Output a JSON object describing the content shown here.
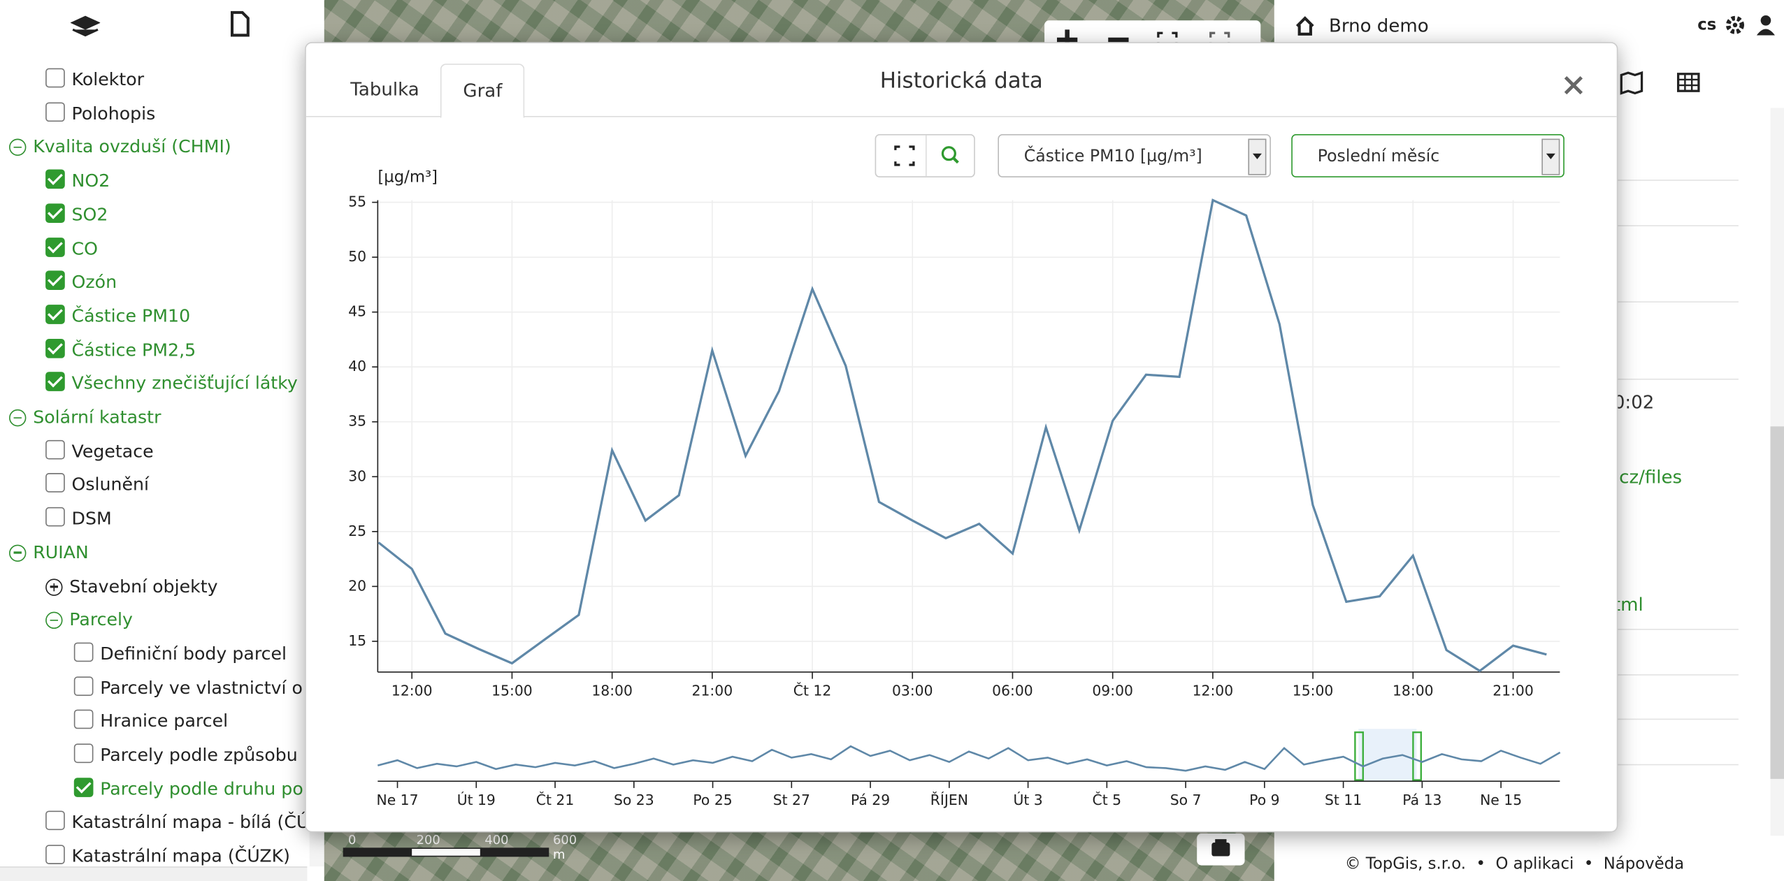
{
  "sidebar": {
    "layers": [
      {
        "label": "Kolektor",
        "checked": false
      },
      {
        "label": "Polohopis",
        "checked": false
      },
      {
        "label": "Kvalita ovzduší (CHMI)",
        "expanded": true,
        "children": [
          {
            "label": "NO2",
            "checked": true
          },
          {
            "label": "SO2",
            "checked": true
          },
          {
            "label": "CO",
            "checked": true
          },
          {
            "label": "Ozón",
            "checked": true
          },
          {
            "label": "Částice PM10",
            "checked": true
          },
          {
            "label": "Částice PM2,5",
            "checked": true
          },
          {
            "label": "Všechny znečišťující látky",
            "checked": true
          }
        ]
      },
      {
        "label": "Solární katastr",
        "expanded": true,
        "children": [
          {
            "label": "Vegetace",
            "checked": false
          },
          {
            "label": "Oslunění",
            "checked": false
          },
          {
            "label": "DSM",
            "checked": false
          }
        ]
      },
      {
        "label": "RUIAN",
        "expanded": true,
        "children": [
          {
            "label": "Stavební objekty",
            "expanded": false,
            "children": []
          },
          {
            "label": "Parcely",
            "expanded": true,
            "children": [
              {
                "label": "Definiční body parcel",
                "checked": false
              },
              {
                "label": "Parcely ve vlastnictví o",
                "checked": false
              },
              {
                "label": "Hranice parcel",
                "checked": false
              },
              {
                "label": "Parcely podle způsobu",
                "checked": false
              },
              {
                "label": "Parcely podle druhu po",
                "checked": true
              }
            ]
          }
        ]
      },
      {
        "label": "Katastrální mapa - bílá (ČÚ",
        "checked": false
      },
      {
        "label": "Katastrální mapa (ČÚZK)",
        "checked": false
      }
    ]
  },
  "map": {
    "scale_labels": [
      0,
      200,
      400,
      600
    ],
    "scale_unit": "m"
  },
  "panel": {
    "title": "Brno demo",
    "language": "cs",
    "fragments": [
      "0:02",
      ".cz/files",
      "tml"
    ]
  },
  "footer": {
    "links": [
      "© TopGis, s.r.o.",
      "O aplikaci",
      "Nápověda"
    ]
  },
  "dialog": {
    "title": "Historická data",
    "tabs": [
      "Tabulka",
      "Graf"
    ],
    "active_tab": 1,
    "selects": [
      "Částice PM10 [µg/m³]",
      "Poslední měsíc"
    ]
  },
  "chart_data": [
    {
      "type": "line",
      "y_label": "[µg/m³]",
      "color": "#5f88a8",
      "grid": true,
      "categories": [
        null,
        "12:00",
        null,
        null,
        "15:00",
        null,
        null,
        "18:00",
        null,
        null,
        "21:00",
        null,
        null,
        "Čt 12",
        null,
        null,
        "03:00",
        null,
        null,
        "06:00",
        null,
        null,
        "09:00",
        null,
        null,
        "12:00",
        null,
        null,
        "15:00",
        null,
        null,
        "18:00",
        null,
        null,
        "21:00",
        null
      ],
      "values": [
        24.0,
        21.6,
        15.7,
        14.3,
        13.0,
        15.2,
        17.4,
        32.4,
        26.0,
        28.3,
        41.5,
        31.9,
        37.8,
        47.1,
        40.1,
        27.7,
        26.0,
        24.4,
        25.7,
        23.0,
        34.5,
        25.1,
        35.1,
        39.3,
        39.1,
        55.2,
        53.8,
        43.9,
        27.4,
        18.6,
        19.1,
        22.8,
        14.2,
        12.3,
        14.6,
        13.8
      ],
      "ylim": [
        12.2,
        55.2
      ],
      "yticks": [
        15,
        20,
        25,
        30,
        35,
        40,
        45,
        50,
        55
      ]
    },
    {
      "type": "line",
      "color": "#5f88a8",
      "categories": [
        null,
        "Ne 17",
        null,
        null,
        null,
        "Út 19",
        null,
        null,
        null,
        "Čt 21",
        null,
        null,
        null,
        "So 23",
        null,
        null,
        null,
        "Po 25",
        null,
        null,
        null,
        "St 27",
        null,
        null,
        null,
        "Pá 29",
        null,
        null,
        null,
        "ŘÍJEN",
        null,
        null,
        null,
        "Út 3",
        null,
        null,
        null,
        "Čt 5",
        null,
        null,
        null,
        "So 7",
        null,
        null,
        null,
        "Po 9",
        null,
        null,
        null,
        "St 11",
        null,
        null,
        null,
        "Pá 13",
        null,
        null,
        null,
        "Ne 15",
        null,
        null,
        null
      ],
      "values": [
        18,
        24,
        15,
        20,
        17,
        22,
        14,
        19,
        16,
        21,
        18,
        23,
        15,
        20,
        26,
        19,
        24,
        21,
        28,
        23,
        36,
        27,
        31,
        25,
        40,
        29,
        35,
        24,
        30,
        22,
        34,
        26,
        38,
        24,
        27,
        20,
        25,
        18,
        23,
        16,
        15,
        12,
        17,
        13,
        22,
        14,
        38,
        19,
        24,
        28,
        17,
        26,
        30,
        22,
        31,
        25,
        23,
        35,
        27,
        20,
        33
      ],
      "ylim": [
        0,
        60
      ]
    }
  ]
}
